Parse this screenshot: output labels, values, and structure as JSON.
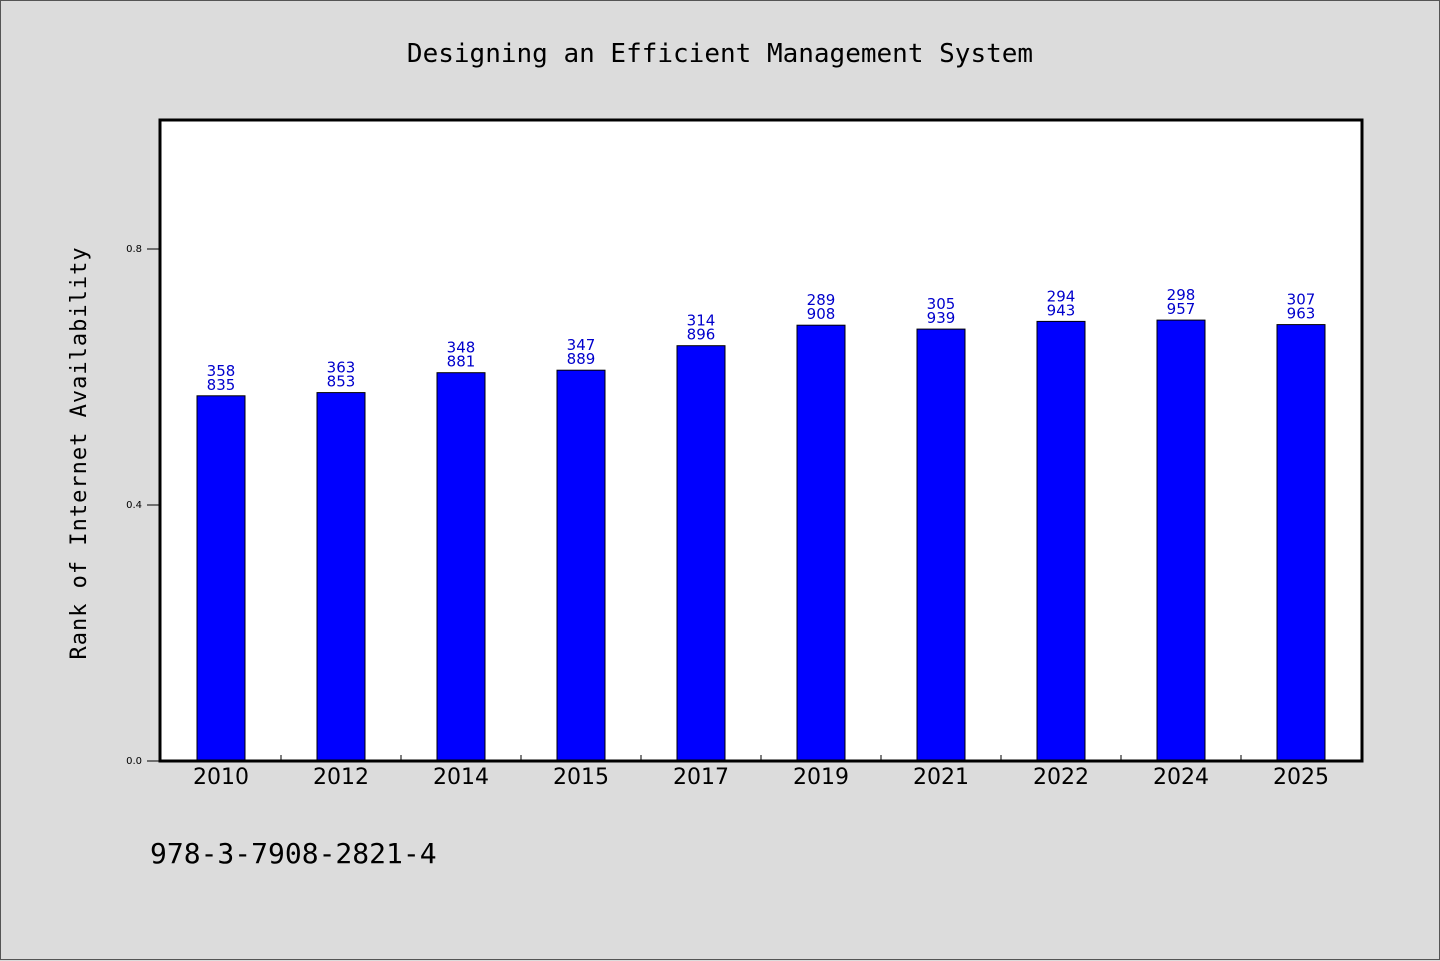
{
  "chart_data": {
    "type": "bar",
    "title": "Designing an Efficient Management System",
    "xlabel": "",
    "ylabel": "Rank of Internet Availability",
    "categories": [
      "2010",
      "2012",
      "2014",
      "2015",
      "2017",
      "2019",
      "2021",
      "2022",
      "2024",
      "2025"
    ],
    "values": [
      0.5706,
      0.5757,
      0.6067,
      0.6107,
      0.6489,
      0.6809,
      0.6749,
      0.6869,
      0.6889,
      0.6819
    ],
    "data_labels": [
      [
        "358",
        "835"
      ],
      [
        "363",
        "853"
      ],
      [
        "348",
        "881"
      ],
      [
        "347",
        "889"
      ],
      [
        "314",
        "896"
      ],
      [
        "289",
        "908"
      ],
      [
        "305",
        "939"
      ],
      [
        "294",
        "943"
      ],
      [
        "298",
        "957"
      ],
      [
        "307",
        "963"
      ]
    ],
    "yticks": [
      "0.0",
      "0.4",
      "0.8"
    ],
    "ylim": [
      0,
      1.0
    ],
    "grid": false,
    "bar_color": "#0000ff",
    "label_color": "#0000cc",
    "frame_background": "#ffffff",
    "page_background": "#dcdcdc"
  },
  "footer": {
    "isbn": "978-3-7908-2821-4"
  }
}
